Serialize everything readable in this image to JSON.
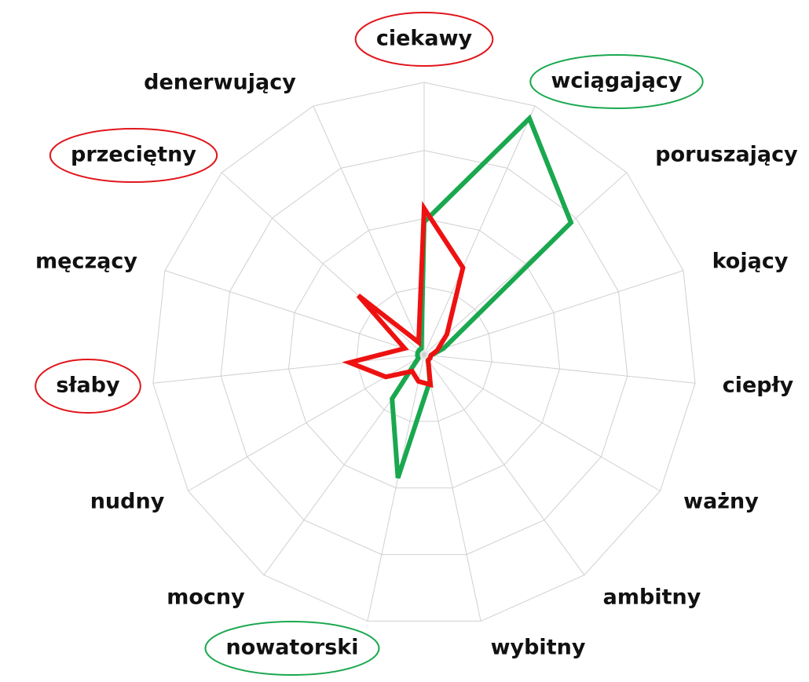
{
  "chart_data": {
    "type": "radar",
    "categories": [
      "ciekawy",
      "wciągający",
      "poruszający",
      "kojący",
      "ciepły",
      "ważny",
      "ambitny",
      "wybitny",
      "nowatorski",
      "mocny",
      "nudny",
      "słaby",
      "męczący",
      "przeciętny",
      "denerwujący"
    ],
    "highlights": [
      "#e0161b",
      "#1aa84f",
      null,
      null,
      null,
      null,
      null,
      null,
      "#1aa84f",
      null,
      null,
      "#e0161b",
      null,
      "#e0161b",
      null
    ],
    "rlim": [
      0,
      4
    ],
    "rticks": [
      1,
      2,
      3,
      4
    ],
    "grid": true,
    "series": [
      {
        "color": "#1aa84f",
        "values": [
          1.95,
          3.8,
          2.9,
          0.3,
          0.1,
          0.1,
          0.1,
          0.4,
          1.85,
          0.8,
          0.1,
          0.1,
          0.1,
          0.1,
          0.1
        ]
      },
      {
        "color": "#ee1111",
        "values": [
          2.15,
          1.4,
          0.45,
          0.2,
          0.1,
          0.1,
          0.1,
          0.45,
          0.4,
          0.3,
          0.65,
          1.1,
          0.3,
          1.3,
          0.2
        ]
      }
    ]
  }
}
